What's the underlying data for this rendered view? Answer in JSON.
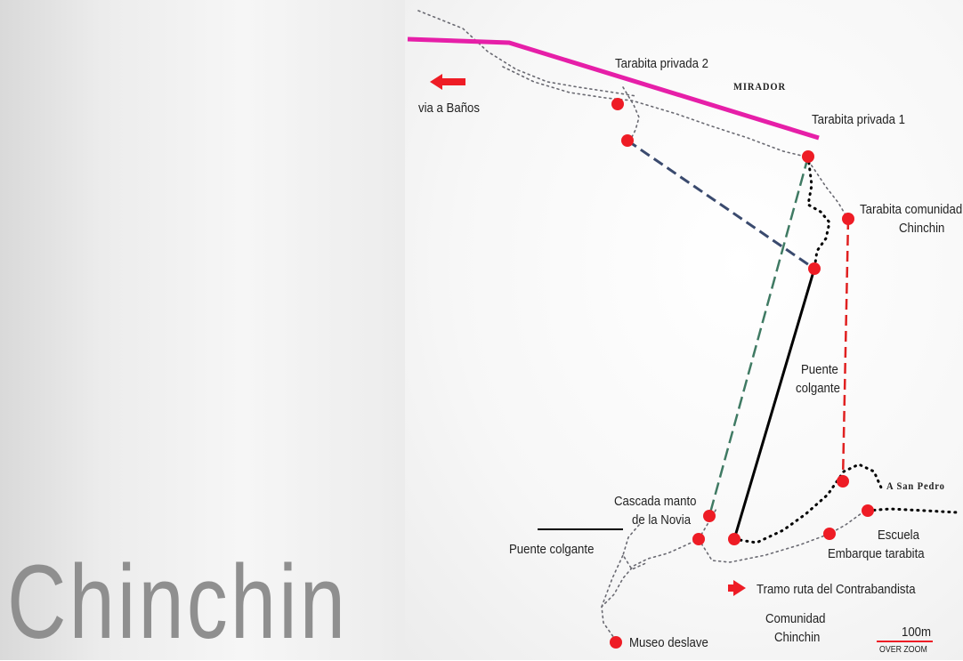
{
  "title": "Chinchin",
  "labels": {
    "via_banos": "via a Baños",
    "tarabita_privada_2": "Tarabita privada 2",
    "mirador": "MIRADOR",
    "tarabita_privada_1": "Tarabita privada 1",
    "tarabita_comunidad_1": "Tarabita comunidad",
    "tarabita_comunidad_2": "Chinchin",
    "puente_colgante_right_1": "Puente",
    "puente_colgante_right_2": "colgante",
    "a_san_pedro": "A San Pedro",
    "cascada_1": "Cascada manto",
    "cascada_2": "de la Novia",
    "puente_colgante_left": "Puente colgante",
    "escuela": "Escuela",
    "embarque_tarabita": "Embarque tarabita",
    "tramo_ruta": "Tramo ruta del Contrabandista",
    "comunidad_1": "Comunidad",
    "comunidad_2": "Chinchin",
    "museo_deslave": "Museo deslave"
  },
  "scale": {
    "value": "100m",
    "note": "OVER ZOOM"
  },
  "colors": {
    "main_road": "#e61fa8",
    "marker": "#ee1c25",
    "arrow": "#ee1c25",
    "navy_dash": "#3a4a6e",
    "green_dash": "#3f7a63",
    "red_dash": "#e02020",
    "bridge": "#000000",
    "trail": "#6a6a72"
  }
}
